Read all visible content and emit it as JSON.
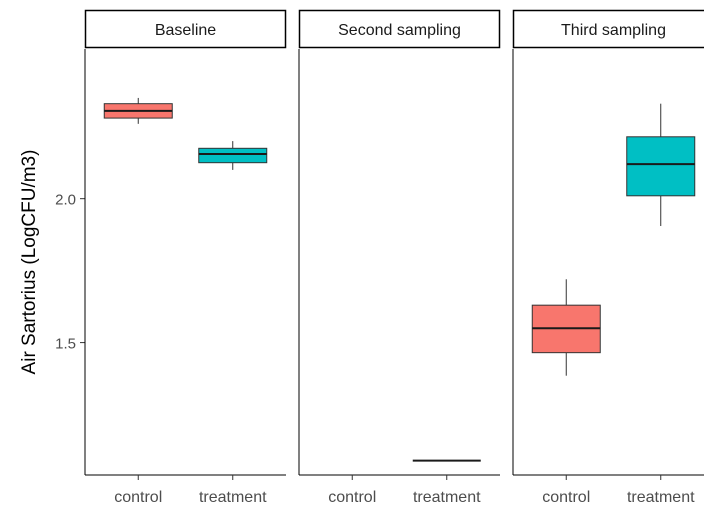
{
  "chart_data": {
    "type": "boxplot",
    "ylabel": "Air Sartorius (LogCFU/m3)",
    "y_ticks": [
      1.5,
      2.0
    ],
    "y_tick_labels": [
      "1.5",
      "2.0"
    ],
    "ylim": [
      1.04,
      2.52
    ],
    "categories": [
      "control",
      "treatment"
    ],
    "grid": false,
    "legend": "none",
    "colors": {
      "control": "#F8766D",
      "treatment": "#00BFC4"
    },
    "panels": [
      {
        "title": "Baseline",
        "boxes": [
          {
            "category": "control",
            "min": 2.26,
            "q1": 2.28,
            "median": 2.305,
            "q3": 2.33,
            "max": 2.35
          },
          {
            "category": "treatment",
            "min": 2.1,
            "q1": 2.125,
            "median": 2.155,
            "q3": 2.175,
            "max": 2.2
          }
        ]
      },
      {
        "title": "Second sampling",
        "boxes": [
          {
            "category": "treatment",
            "min": 1.09,
            "q1": 1.09,
            "median": 1.09,
            "q3": 1.09,
            "max": 1.09
          }
        ]
      },
      {
        "title": "Third sampling",
        "boxes": [
          {
            "category": "control",
            "min": 1.385,
            "q1": 1.465,
            "median": 1.55,
            "q3": 1.63,
            "max": 1.72
          },
          {
            "category": "treatment",
            "min": 1.905,
            "q1": 2.01,
            "median": 2.12,
            "q3": 2.215,
            "max": 2.33
          }
        ]
      }
    ]
  }
}
